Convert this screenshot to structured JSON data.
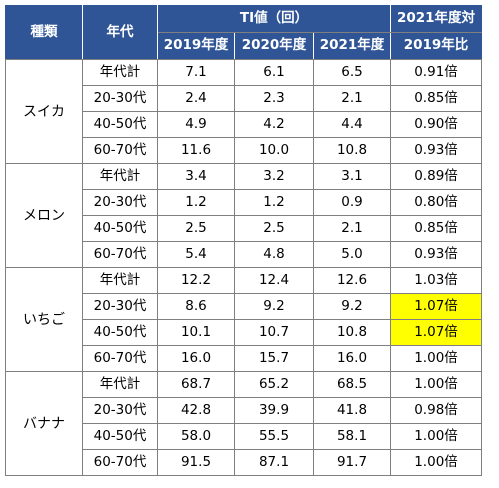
{
  "header": {
    "kind": "種類",
    "age": "年代",
    "ti": "TI値（回）",
    "years": [
      "2019年度",
      "2020年度",
      "2021年度"
    ],
    "ratio_line1": "2021年度対",
    "ratio_line2": "2019年比"
  },
  "highlight_color": "#ffff00",
  "header_color": "#2f5597",
  "groups": [
    {
      "kind": "スイカ",
      "rows": [
        {
          "age": "年代計",
          "v2019": "7.1",
          "v2020": "6.1",
          "v2021": "6.5",
          "ratio": "0.91倍",
          "highlight": false
        },
        {
          "age": "20-30代",
          "v2019": "2.4",
          "v2020": "2.3",
          "v2021": "2.1",
          "ratio": "0.85倍",
          "highlight": false
        },
        {
          "age": "40-50代",
          "v2019": "4.9",
          "v2020": "4.2",
          "v2021": "4.4",
          "ratio": "0.90倍",
          "highlight": false
        },
        {
          "age": "60-70代",
          "v2019": "11.6",
          "v2020": "10.0",
          "v2021": "10.8",
          "ratio": "0.93倍",
          "highlight": false
        }
      ]
    },
    {
      "kind": "メロン",
      "rows": [
        {
          "age": "年代計",
          "v2019": "3.4",
          "v2020": "3.2",
          "v2021": "3.1",
          "ratio": "0.89倍",
          "highlight": false
        },
        {
          "age": "20-30代",
          "v2019": "1.2",
          "v2020": "1.2",
          "v2021": "0.9",
          "ratio": "0.80倍",
          "highlight": false
        },
        {
          "age": "40-50代",
          "v2019": "2.5",
          "v2020": "2.5",
          "v2021": "2.1",
          "ratio": "0.85倍",
          "highlight": false
        },
        {
          "age": "60-70代",
          "v2019": "5.4",
          "v2020": "4.8",
          "v2021": "5.0",
          "ratio": "0.93倍",
          "highlight": false
        }
      ]
    },
    {
      "kind": "いちご",
      "rows": [
        {
          "age": "年代計",
          "v2019": "12.2",
          "v2020": "12.4",
          "v2021": "12.6",
          "ratio": "1.03倍",
          "highlight": false
        },
        {
          "age": "20-30代",
          "v2019": "8.6",
          "v2020": "9.2",
          "v2021": "9.2",
          "ratio": "1.07倍",
          "highlight": true
        },
        {
          "age": "40-50代",
          "v2019": "10.1",
          "v2020": "10.7",
          "v2021": "10.8",
          "ratio": "1.07倍",
          "highlight": true
        },
        {
          "age": "60-70代",
          "v2019": "16.0",
          "v2020": "15.7",
          "v2021": "16.0",
          "ratio": "1.00倍",
          "highlight": false
        }
      ]
    },
    {
      "kind": "バナナ",
      "rows": [
        {
          "age": "年代計",
          "v2019": "68.7",
          "v2020": "65.2",
          "v2021": "68.5",
          "ratio": "1.00倍",
          "highlight": false
        },
        {
          "age": "20-30代",
          "v2019": "42.8",
          "v2020": "39.9",
          "v2021": "41.8",
          "ratio": "0.98倍",
          "highlight": false
        },
        {
          "age": "40-50代",
          "v2019": "58.0",
          "v2020": "55.5",
          "v2021": "58.1",
          "ratio": "1.00倍",
          "highlight": false
        },
        {
          "age": "60-70代",
          "v2019": "91.5",
          "v2020": "87.1",
          "v2021": "91.7",
          "ratio": "1.00倍",
          "highlight": false
        }
      ]
    }
  ]
}
